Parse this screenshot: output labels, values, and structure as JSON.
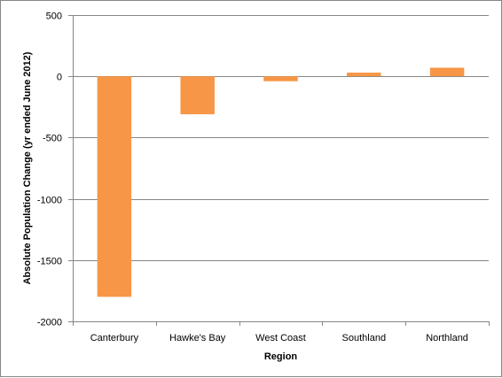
{
  "chart_data": {
    "type": "bar",
    "title": "",
    "xlabel": "Region",
    "ylabel": "Absolute Population  Change  (yr ended June 2012)",
    "categories": [
      "Canterbury",
      "Hawke's Bay",
      "West Coast",
      "Southland",
      "Northland"
    ],
    "values": [
      -1800,
      -310,
      -40,
      30,
      70
    ],
    "ylim": [
      -2000,
      500
    ],
    "yticks": [
      500,
      0,
      -500,
      -1000,
      -1500,
      -2000
    ],
    "grid": true,
    "legend": "none",
    "bar_color": "#F79646",
    "grid_color": "#868686"
  }
}
